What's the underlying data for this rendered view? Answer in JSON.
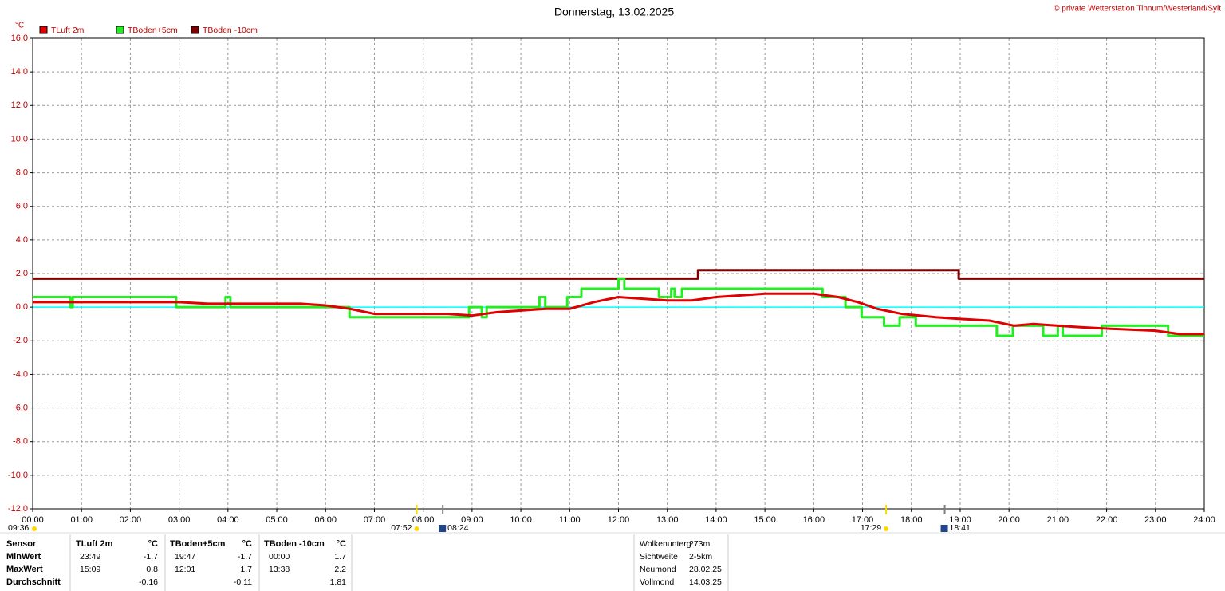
{
  "chart_data": {
    "type": "line",
    "title": "Donnerstag, 13.02.2025",
    "copyright": "© private Wetterstation Tinnum/Westerland/Sylt",
    "y_unit": "°C",
    "xlim": [
      0,
      24
    ],
    "xticks": [
      {
        "value": 0,
        "label": "00:00"
      },
      {
        "value": 1,
        "label": "01:00"
      },
      {
        "value": 2,
        "label": "02:00"
      },
      {
        "value": 3,
        "label": "03:00"
      },
      {
        "value": 4,
        "label": "04:00"
      },
      {
        "value": 5,
        "label": "05:00"
      },
      {
        "value": 6,
        "label": "06:00"
      },
      {
        "value": 7,
        "label": "07:00"
      },
      {
        "value": 8,
        "label": "08:00"
      },
      {
        "value": 9,
        "label": "09:00"
      },
      {
        "value": 10,
        "label": "10:00"
      },
      {
        "value": 11,
        "label": "11:00"
      },
      {
        "value": 12,
        "label": "12:00"
      },
      {
        "value": 13,
        "label": "13:00"
      },
      {
        "value": 14,
        "label": "14:00"
      },
      {
        "value": 15,
        "label": "15:00"
      },
      {
        "value": 16,
        "label": "16:00"
      },
      {
        "value": 17,
        "label": "17:00"
      },
      {
        "value": 18,
        "label": "18:00"
      },
      {
        "value": 19,
        "label": "19:00"
      },
      {
        "value": 20,
        "label": "20:00"
      },
      {
        "value": 21,
        "label": "21:00"
      },
      {
        "value": 22,
        "label": "22:00"
      },
      {
        "value": 23,
        "label": "23:00"
      },
      {
        "value": 24,
        "label": "24:00"
      }
    ],
    "ylim": [
      -12,
      16
    ],
    "yticks": [
      {
        "value": 16,
        "label": "16.0"
      },
      {
        "value": 14,
        "label": "14.0"
      },
      {
        "value": 12,
        "label": "12.0"
      },
      {
        "value": 10,
        "label": "10.0"
      },
      {
        "value": 8,
        "label": "8.0"
      },
      {
        "value": 6,
        "label": "6.0"
      },
      {
        "value": 4,
        "label": "4.0"
      },
      {
        "value": 2,
        "label": "2.0"
      },
      {
        "value": 0,
        "label": "0.0"
      },
      {
        "value": -2,
        "label": "-2.0"
      },
      {
        "value": -4,
        "label": "-4.0"
      },
      {
        "value": -6,
        "label": "-6.0"
      },
      {
        "value": -8,
        "label": "-8.0"
      },
      {
        "value": -10,
        "label": "-10.0"
      },
      {
        "value": -12,
        "label": "-12.0"
      }
    ],
    "grid": true,
    "zero_line": {
      "value": 0,
      "color": "#00ffff"
    },
    "series": [
      {
        "name": "TLuft 2m",
        "color": "#e00000",
        "step": false,
        "x": [
          0,
          1,
          2,
          3,
          3.6,
          4,
          5,
          5.5,
          6,
          6.5,
          7,
          8,
          8.5,
          9,
          9.5,
          10,
          10.5,
          11,
          11.5,
          12,
          12.5,
          13,
          13.5,
          14,
          14.5,
          15,
          15.5,
          16,
          16.5,
          16.9,
          17.3,
          17.8,
          18.5,
          19,
          19.6,
          20.1,
          20.5,
          21,
          21.5,
          22.2,
          23,
          23.5,
          24
        ],
        "values": [
          0.3,
          0.3,
          0.3,
          0.3,
          0.2,
          0.2,
          0.2,
          0.2,
          0.1,
          -0.1,
          -0.4,
          -0.4,
          -0.4,
          -0.5,
          -0.3,
          -0.2,
          -0.1,
          -0.1,
          0.3,
          0.6,
          0.5,
          0.4,
          0.4,
          0.6,
          0.7,
          0.8,
          0.8,
          0.8,
          0.6,
          0.3,
          -0.1,
          -0.4,
          -0.6,
          -0.7,
          -0.8,
          -1.1,
          -1.0,
          -1.1,
          -1.2,
          -1.3,
          -1.4,
          -1.6,
          -1.6
        ]
      },
      {
        "name": "TBoden+5cm",
        "color": "#22ee22",
        "step": true,
        "x": [
          0,
          0.77,
          0.82,
          2.94,
          3.95,
          4.05,
          6.49,
          8.94,
          9.2,
          9.3,
          10.38,
          10.5,
          10.95,
          11.24,
          12.0,
          12.12,
          12.83,
          13.08,
          13.15,
          13.3,
          16.18,
          16.65,
          16.98,
          17.44,
          17.76,
          18.09,
          19.75,
          20.08,
          20.7,
          21.0,
          21.1,
          21.9,
          23.26,
          24
        ],
        "values": [
          0.6,
          0,
          0.6,
          0,
          0.6,
          0,
          -0.6,
          0,
          -0.6,
          0,
          0.6,
          0,
          0.6,
          1.1,
          1.7,
          1.1,
          0.6,
          1.1,
          0.6,
          1.1,
          0.6,
          0,
          -0.6,
          -1.1,
          -0.6,
          -1.1,
          -1.7,
          -1.1,
          -1.7,
          -1.1,
          -1.7,
          -1.1,
          -1.7,
          -1.7
        ]
      },
      {
        "name": "TBoden -10cm",
        "color": "#800000",
        "step": true,
        "x": [
          0,
          13.63,
          18.97,
          24
        ],
        "values": [
          1.7,
          2.2,
          1.7,
          1.7
        ]
      }
    ],
    "day_length": "09:36",
    "sun_moon": [
      {
        "x": 7.867,
        "label": "07:52",
        "color": "#ffd700",
        "side": "left"
      },
      {
        "x": 8.4,
        "label": "08:24",
        "color": "#808080",
        "side": "right"
      },
      {
        "x": 17.483,
        "label": "17:29",
        "color": "#ffd700",
        "side": "left"
      },
      {
        "x": 18.683,
        "label": "18:41",
        "color": "#808080",
        "side": "right"
      }
    ],
    "stats": {
      "header": [
        "Sensor",
        "TLuft 2m",
        "°C",
        "TBoden+5cm",
        "°C",
        "TBoden -10cm",
        "°C"
      ],
      "rows": [
        [
          "MinWert",
          "23:49",
          "-1.7",
          "19:47",
          "-1.7",
          "00:00",
          "1.7"
        ],
        [
          "MaxWert",
          "15:09",
          "0.8",
          "12:01",
          "1.7",
          "13:38",
          "2.2"
        ],
        [
          "Durchschnitt",
          null,
          "-0.16",
          null,
          "-0.11",
          null,
          "1.81"
        ]
      ]
    },
    "info": [
      [
        "Wolkenunterg",
        "273m"
      ],
      [
        "Sichtweite",
        "2-5km"
      ],
      [
        "Neumond",
        "28.02.25"
      ],
      [
        "Vollmond",
        "14.03.25"
      ]
    ]
  }
}
